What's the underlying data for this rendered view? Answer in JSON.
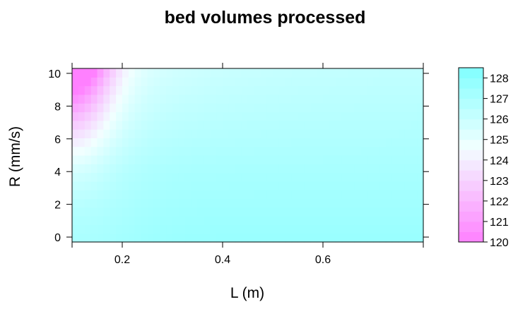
{
  "chart_data": {
    "type": "heatmap",
    "title": "bed volumes processed",
    "xlabel": "L (m)",
    "ylabel": "R (mm/s)",
    "xlim": [
      0.1,
      0.8
    ],
    "ylim": [
      -0.3,
      10.3
    ],
    "x_ticks": [
      0.2,
      0.4,
      0.6
    ],
    "x_tick_labels": [
      "0.2",
      "0.4",
      "0.6"
    ],
    "y_ticks": [
      0,
      2,
      4,
      6,
      8,
      10
    ],
    "y_tick_labels": [
      "0",
      "2",
      "4",
      "6",
      "8",
      "10"
    ],
    "colorkey": {
      "min": 120,
      "max": 128.5,
      "ticks": [
        120,
        121,
        122,
        123,
        124,
        125,
        126,
        127,
        128
      ],
      "tick_labels": [
        "120",
        "121",
        "122",
        "123",
        "124",
        "125",
        "126",
        "127",
        "128"
      ],
      "low_color": "#ff80ff",
      "mid_color": "#f2ffff",
      "high_color": "#80ffff"
    },
    "grid": {
      "x_range": [
        0.1,
        0.8
      ],
      "y_range": [
        -0.3,
        10.3
      ],
      "nx": 56,
      "ny": 20,
      "note_values": "bed volumes processed estimated across the L × R grid; low values at small L and large R"
    },
    "grid_on": false
  }
}
